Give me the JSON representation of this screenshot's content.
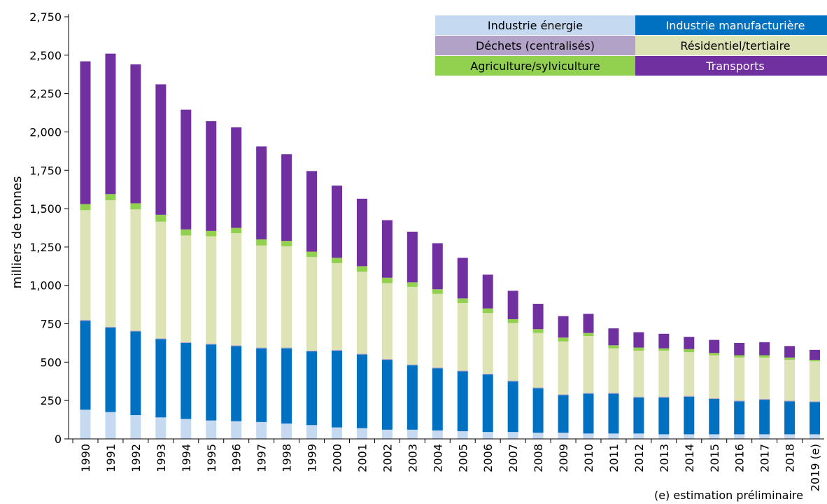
{
  "chart_data": {
    "type": "bar",
    "stacked": true,
    "ylabel": "milliers de tonnes",
    "ylim": [
      0,
      2750
    ],
    "yticks": [
      0,
      250,
      500,
      750,
      1000,
      1250,
      1500,
      1750,
      2000,
      2250,
      2500,
      2750
    ],
    "ytick_labels": [
      "0",
      "250",
      "500",
      "750",
      "1,000",
      "1,250",
      "1,500",
      "1,750",
      "2,000",
      "2,250",
      "2,500",
      "2,750"
    ],
    "grid": false,
    "legend_position": "top-right",
    "categories": [
      "1990",
      "1991",
      "1992",
      "1993",
      "1994",
      "1995",
      "1996",
      "1997",
      "1998",
      "1999",
      "2000",
      "2001",
      "2002",
      "2003",
      "2004",
      "2005",
      "2006",
      "2007",
      "2008",
      "2009",
      "2010",
      "2011",
      "2012",
      "2013",
      "2014",
      "2015",
      "2016",
      "2017",
      "2018",
      "2019 (e)"
    ],
    "series": [
      {
        "name": "Industrie énergie",
        "color": "#c5d9f1",
        "text_color": "#000000",
        "values": [
          190,
          175,
          155,
          140,
          130,
          120,
          115,
          110,
          100,
          90,
          75,
          70,
          60,
          60,
          55,
          50,
          45,
          45,
          40,
          40,
          35,
          35,
          35,
          30,
          30,
          30,
          30,
          30,
          30,
          30
        ]
      },
      {
        "name": "Industrie manufacturière",
        "color": "#0070c0",
        "text_color": "#ffffff",
        "values": [
          580,
          550,
          545,
          510,
          495,
          495,
          490,
          480,
          490,
          480,
          500,
          480,
          455,
          420,
          405,
          390,
          375,
          330,
          290,
          245,
          260,
          260,
          235,
          240,
          245,
          230,
          215,
          225,
          215,
          210
        ]
      },
      {
        "name": "Déchets (centralisés)",
        "color": "#b3a2c7",
        "text_color": "#000000",
        "values": [
          5,
          5,
          5,
          5,
          5,
          5,
          5,
          5,
          5,
          5,
          5,
          5,
          5,
          5,
          5,
          5,
          5,
          5,
          5,
          5,
          5,
          5,
          5,
          5,
          5,
          5,
          5,
          5,
          5,
          5
        ]
      },
      {
        "name": "Résidentiel/tertiaire",
        "color": "#dde3b4",
        "text_color": "#000000",
        "values": [
          715,
          825,
          790,
          760,
          695,
          700,
          730,
          665,
          660,
          610,
          565,
          535,
          495,
          505,
          480,
          440,
          395,
          375,
          355,
          345,
          370,
          290,
          300,
          300,
          285,
          280,
          280,
          270,
          265,
          260
        ]
      },
      {
        "name": "Agriculture/sylviculture",
        "color": "#92d050",
        "text_color": "#000000",
        "values": [
          40,
          40,
          40,
          45,
          40,
          35,
          35,
          40,
          35,
          35,
          35,
          35,
          35,
          30,
          30,
          30,
          30,
          25,
          25,
          25,
          20,
          20,
          20,
          15,
          20,
          15,
          15,
          15,
          15,
          10
        ]
      },
      {
        "name": "Transports",
        "color": "#7030a0",
        "text_color": "#ffffff",
        "values": [
          930,
          915,
          905,
          850,
          780,
          715,
          655,
          605,
          565,
          525,
          470,
          440,
          375,
          330,
          300,
          265,
          220,
          185,
          165,
          140,
          125,
          110,
          100,
          95,
          80,
          85,
          80,
          85,
          75,
          65
        ]
      }
    ],
    "legend_layout": [
      [
        "Industrie énergie",
        "Industrie manufacturière"
      ],
      [
        "Déchets (centralisés)",
        "Résidentiel/tertiaire"
      ],
      [
        "Agriculture/sylviculture",
        "Transports"
      ]
    ]
  },
  "footnote": "(e) estimation préliminaire"
}
